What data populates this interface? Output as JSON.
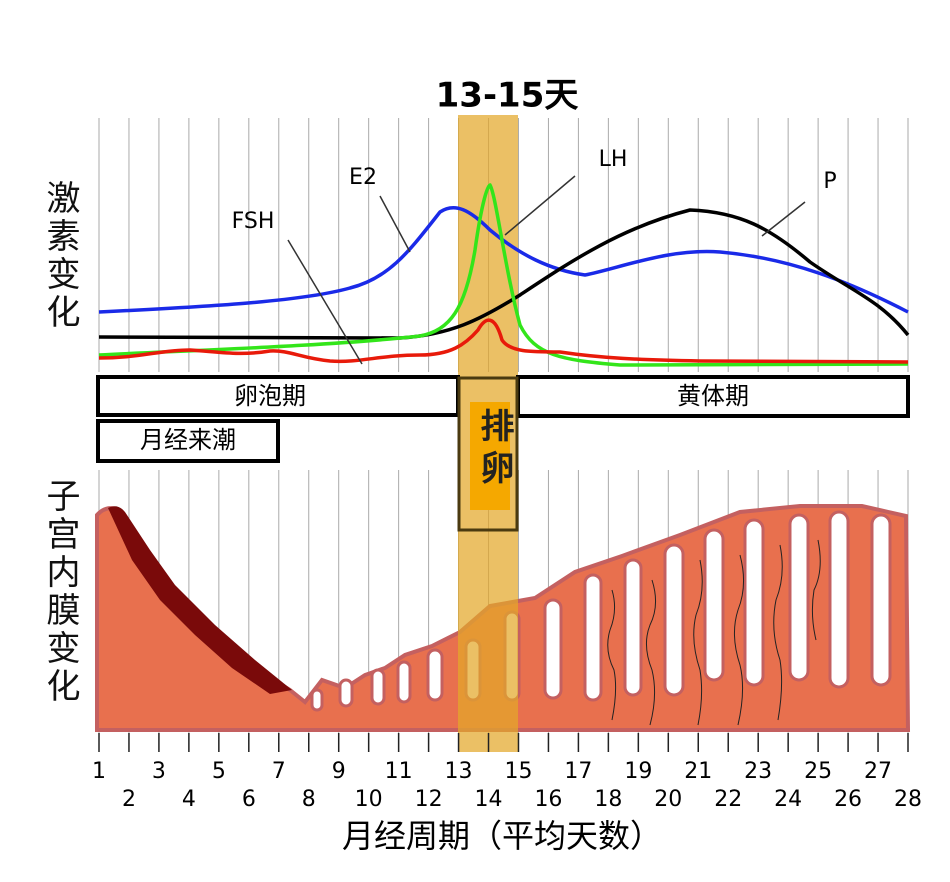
{
  "title": "13-15天",
  "y_labels": {
    "hormones": "激素变化",
    "endometrium": "子宫内膜变化"
  },
  "curve_labels": [
    "FSH",
    "E2",
    "LH",
    "P"
  ],
  "phases": {
    "follicular": "卵泡期",
    "luteal": "黄体期",
    "menstruation": "月经来潮",
    "ovulation": "排卵"
  },
  "x_ticks": [
    1,
    2,
    3,
    4,
    5,
    6,
    7,
    8,
    9,
    10,
    11,
    12,
    13,
    14,
    15,
    16,
    17,
    18,
    19,
    20,
    21,
    22,
    23,
    24,
    25,
    26,
    27,
    28
  ],
  "x_label": "月经周期（平均天数）"
}
